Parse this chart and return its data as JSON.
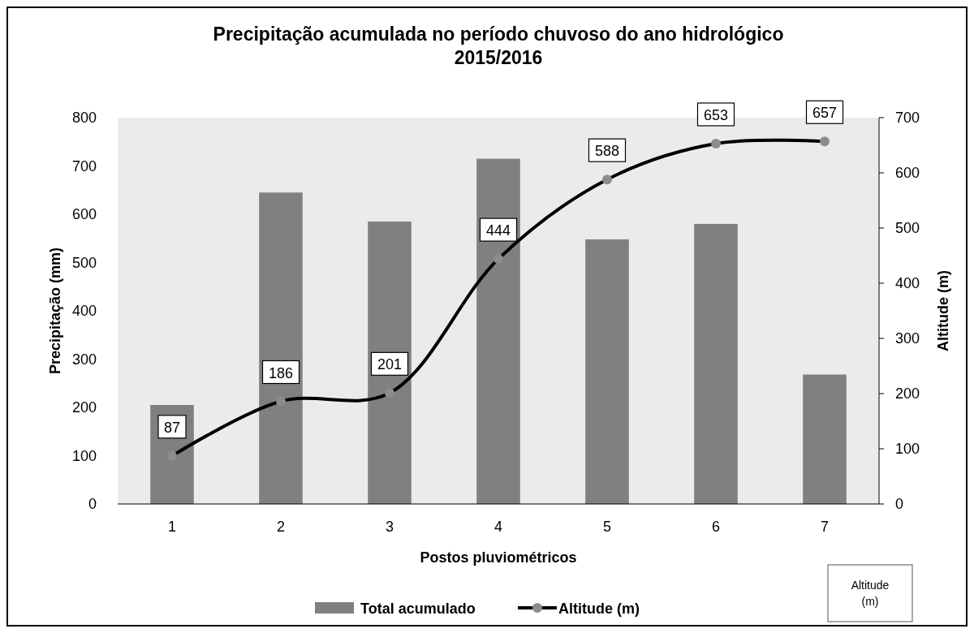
{
  "chart_data": {
    "type": "bar",
    "title": "Precipitação acumulada no período chuvoso do ano hidrológico 2015/2016",
    "xlabel": "Postos pluviométricos",
    "ylabel": "Precipitação (mm)",
    "y2label": "Altitude (m)",
    "categories": [
      "1",
      "2",
      "3",
      "4",
      "5",
      "6",
      "7"
    ],
    "series": [
      {
        "name": "Total acumulado",
        "color": "#808080",
        "values": [
          205,
          645,
          585,
          715,
          548,
          580,
          268
        ]
      },
      {
        "name": "Altitude (m)",
        "type": "line",
        "axis": "y2",
        "color": "#000000",
        "values": [
          87,
          186,
          201,
          444,
          588,
          653,
          657
        ],
        "value_labels": [
          "87",
          "186",
          "201",
          "444",
          "588",
          "653",
          "657"
        ]
      }
    ],
    "ylim": [
      0,
      800
    ],
    "yticks": [
      0,
      100,
      200,
      300,
      400,
      500,
      600,
      700,
      800
    ],
    "y2lim": [
      0,
      700
    ],
    "y2ticks": [
      0,
      100,
      200,
      300,
      400,
      500,
      600,
      700
    ],
    "marker": "circle",
    "legend": "bottom",
    "grid": false,
    "annotations": [
      "Altitude (m)"
    ]
  }
}
